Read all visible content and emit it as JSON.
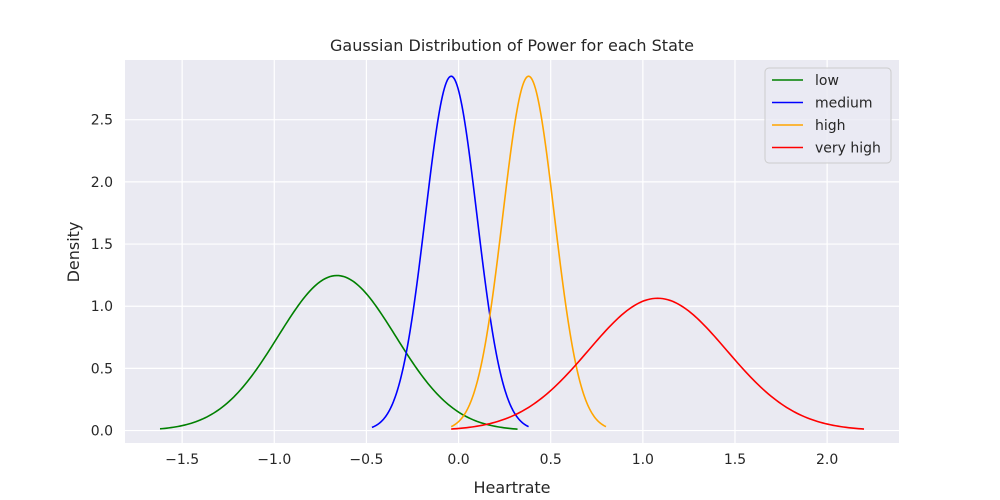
{
  "chart_data": {
    "type": "line",
    "title": "Gaussian Distribution of Power for each State",
    "xlabel": "Heartrate",
    "ylabel": "Density",
    "xlim": [
      -1.81,
      2.39
    ],
    "ylim": [
      -0.1,
      2.98
    ],
    "xticks": [
      -1.5,
      -1.0,
      -0.5,
      0.0,
      0.5,
      1.0,
      1.5,
      2.0
    ],
    "xtick_labels": [
      "−1.5",
      "−1.0",
      "−0.5",
      "0.0",
      "0.5",
      "1.0",
      "1.5",
      "2.0"
    ],
    "yticks": [
      0.0,
      0.5,
      1.0,
      1.5,
      2.0,
      2.5
    ],
    "ytick_labels": [
      "0.0",
      "0.5",
      "1.0",
      "1.5",
      "2.0",
      "2.5"
    ],
    "grid": true,
    "legend_position": "top-right",
    "series": [
      {
        "name": "low",
        "color": "#008000",
        "mean": -0.66,
        "std": 0.32,
        "x_range": [
          -1.62,
          0.32
        ]
      },
      {
        "name": "medium",
        "color": "#0000ff",
        "mean": -0.04,
        "std": 0.14,
        "x_range": [
          -0.47,
          0.38
        ]
      },
      {
        "name": "high",
        "color": "#ffa500",
        "mean": 0.38,
        "std": 0.14,
        "x_range": [
          -0.04,
          0.8
        ]
      },
      {
        "name": "very high",
        "color": "#ff0000",
        "mean": 1.08,
        "std": 0.375,
        "x_range": [
          -0.04,
          2.2
        ]
      }
    ]
  }
}
